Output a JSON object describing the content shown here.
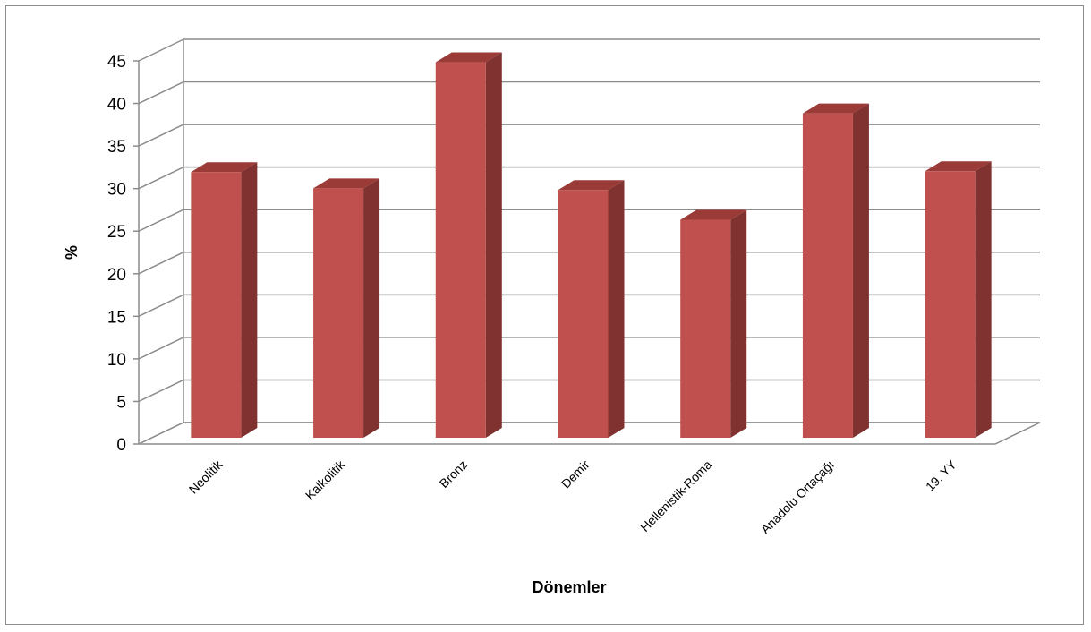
{
  "chart_data": {
    "type": "bar",
    "style": "3d-column",
    "title": "",
    "xlabel": "Dönemler",
    "ylabel": "%",
    "categories": [
      "Neolitik",
      "Kalkolitik",
      "Bronz",
      "Demir",
      "Hellenistik-Roma",
      "Anadolu Ortaçağı",
      "19. YY"
    ],
    "values": [
      31.2,
      29.3,
      44.1,
      29.1,
      25.6,
      38.1,
      31.3
    ],
    "ylim": [
      0,
      45
    ],
    "yticks": [
      0,
      5,
      10,
      15,
      20,
      25,
      30,
      35,
      40,
      45
    ],
    "grid": true,
    "legend": "none",
    "colors": {
      "bar_front": "#c0504d",
      "bar_side": "#7f3230",
      "bar_top": "#9a3b38",
      "grid": "#8c8c8c"
    }
  }
}
